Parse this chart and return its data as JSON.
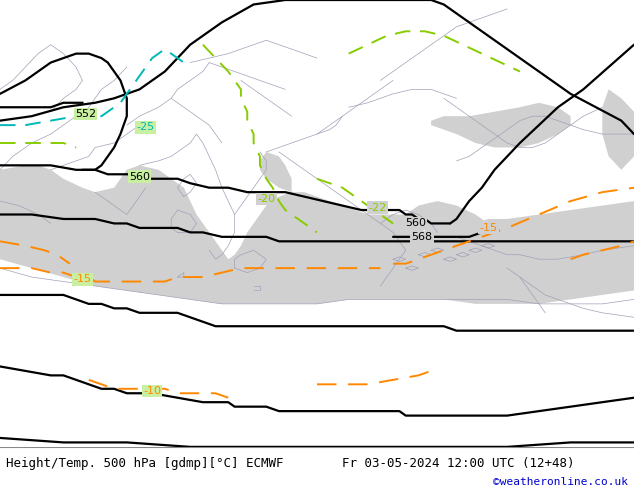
{
  "title_left": "Height/Temp. 500 hPa [gdmp][°C] ECMWF",
  "title_right": "Fr 03-05-2024 12:00 UTC (12+48)",
  "credit": "©weatheronline.co.uk",
  "land_color": "#c8f0a0",
  "sea_color": "#d0d0d0",
  "fig_width": 6.34,
  "fig_height": 4.9,
  "dpi": 100,
  "title_fontsize": 9,
  "credit_fontsize": 8,
  "credit_color": "#0000cc",
  "black_contour_color": "#000000",
  "cyan_contour_color": "#00b8b8",
  "lime_contour_color": "#88cc00",
  "orange_contour_color": "#ff8800",
  "border_color": "#a0a0b8",
  "border_lw": 0.5,
  "black_lw": 1.6,
  "colored_lw": 1.4
}
